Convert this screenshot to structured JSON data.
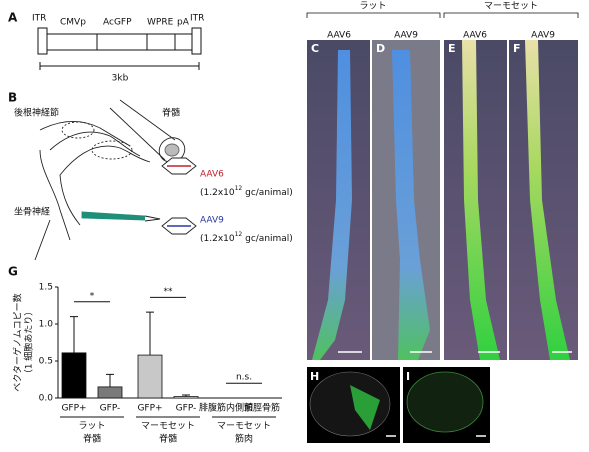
{
  "panel_letters": {
    "a": "A",
    "b": "B",
    "g": "G",
    "photos": [
      "C",
      "D",
      "E",
      "F"
    ],
    "sections": [
      "H",
      "I"
    ]
  },
  "construct": {
    "elements": [
      "ITR",
      "CMVp",
      "AcGFP",
      "WPRE",
      "pA",
      "ITR"
    ],
    "scale": "3kb"
  },
  "diagram": {
    "ganglion": "後根神経節",
    "cord": "脊髄",
    "nerve": "坐骨神経",
    "vectors": [
      {
        "name": "AAV6",
        "color": "#c0202a",
        "dose": {
          "base": "(1.2x10",
          "exp": "12",
          "unit": " gc/animal)"
        }
      },
      {
        "name": "AAV9",
        "color": "#2a3aa0",
        "dose": {
          "base": "(1.2x10",
          "exp": "12",
          "unit": " gc/animal)"
        }
      }
    ]
  },
  "photos": {
    "groups": [
      {
        "name": "ラット",
        "vectors": [
          "AAV6",
          "AAV9"
        ]
      },
      {
        "name": "マーモセット",
        "vectors": [
          "AAV6",
          "AAV9"
        ]
      }
    ]
  },
  "chart_data": {
    "type": "bar",
    "y_label": [
      "ベクターゲノムコピー数",
      "（1 細胞あたり）"
    ],
    "categories": [
      "GFP+",
      "GFP-",
      "GFP+",
      "GFP-",
      "腓腹筋内側頭",
      "前脛骨筋"
    ],
    "values": [
      0.61,
      0.15,
      0.58,
      0.02,
      0,
      0
    ],
    "errors": [
      0.49,
      0.17,
      0.58,
      0.02,
      0,
      0
    ],
    "colors": [
      "#000000",
      "#7a7a7a",
      "#c8c8c8",
      "#ffffff",
      "#ffffff",
      "#ffffff"
    ],
    "groups": [
      {
        "name": "ラット",
        "tissue": "脊髄",
        "categories": [
          0,
          1
        ]
      },
      {
        "name": "マーモセット",
        "tissue": "脊髄",
        "categories": [
          2,
          3
        ]
      },
      {
        "name": "マーモセット",
        "tissue": "筋肉",
        "categories": [
          4,
          5
        ]
      }
    ],
    "annotations": [
      {
        "text": "*",
        "categories": [
          0,
          1
        ]
      },
      {
        "text": "**",
        "categories": [
          2,
          3
        ]
      },
      {
        "text": "n.s.",
        "categories": [
          4,
          5
        ]
      }
    ],
    "ylim": [
      0,
      1.5
    ],
    "yticks": [
      {
        "value": 0,
        "label": "0.0"
      },
      {
        "value": 0.5,
        "label": "0.5"
      },
      {
        "value": 1,
        "label": "1.0"
      },
      {
        "value": 1.5,
        "label": "1.5"
      }
    ]
  }
}
